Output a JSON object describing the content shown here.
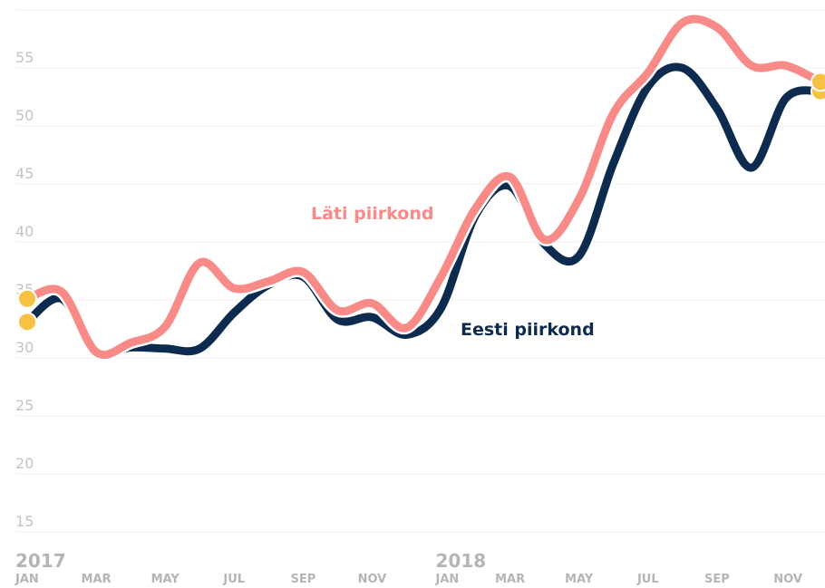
{
  "chart_data": {
    "type": "line",
    "categories": [
      "JAN",
      null,
      "MAR",
      null,
      "MAY",
      null,
      "JUL",
      null,
      "SEP",
      null,
      "NOV",
      null,
      "JAN",
      null,
      "MAR",
      null,
      "MAY",
      null,
      "JUL",
      null,
      "SEP",
      null,
      "NOV",
      null
    ],
    "years": [
      "2017",
      "2018"
    ],
    "series": [
      {
        "name": "Eesti piirkond",
        "color": "#0d2b4e",
        "values": [
          33.1,
          35.1,
          30.5,
          30.9,
          30.8,
          30.8,
          33.9,
          36.3,
          37.0,
          33.3,
          33.5,
          32.0,
          34.3,
          42.3,
          44.8,
          39.8,
          38.8,
          46.8,
          53.4,
          55.0,
          51.5,
          46.4,
          52.4,
          53.0
        ]
      },
      {
        "name": "Läti piirkond",
        "color": "#f88a87",
        "values": [
          35.1,
          35.7,
          30.5,
          31.3,
          32.7,
          38.2,
          36.0,
          36.6,
          37.4,
          34.1,
          34.7,
          32.6,
          37.0,
          42.9,
          45.6,
          40.2,
          43.7,
          51.1,
          54.6,
          58.9,
          58.5,
          55.2,
          55.2,
          53.8
        ]
      }
    ],
    "marker_color": "#f5c244",
    "ylim": [
      15,
      60
    ],
    "yticks": [
      15,
      20,
      25,
      30,
      35,
      40,
      45,
      50,
      55
    ],
    "grid": true
  }
}
